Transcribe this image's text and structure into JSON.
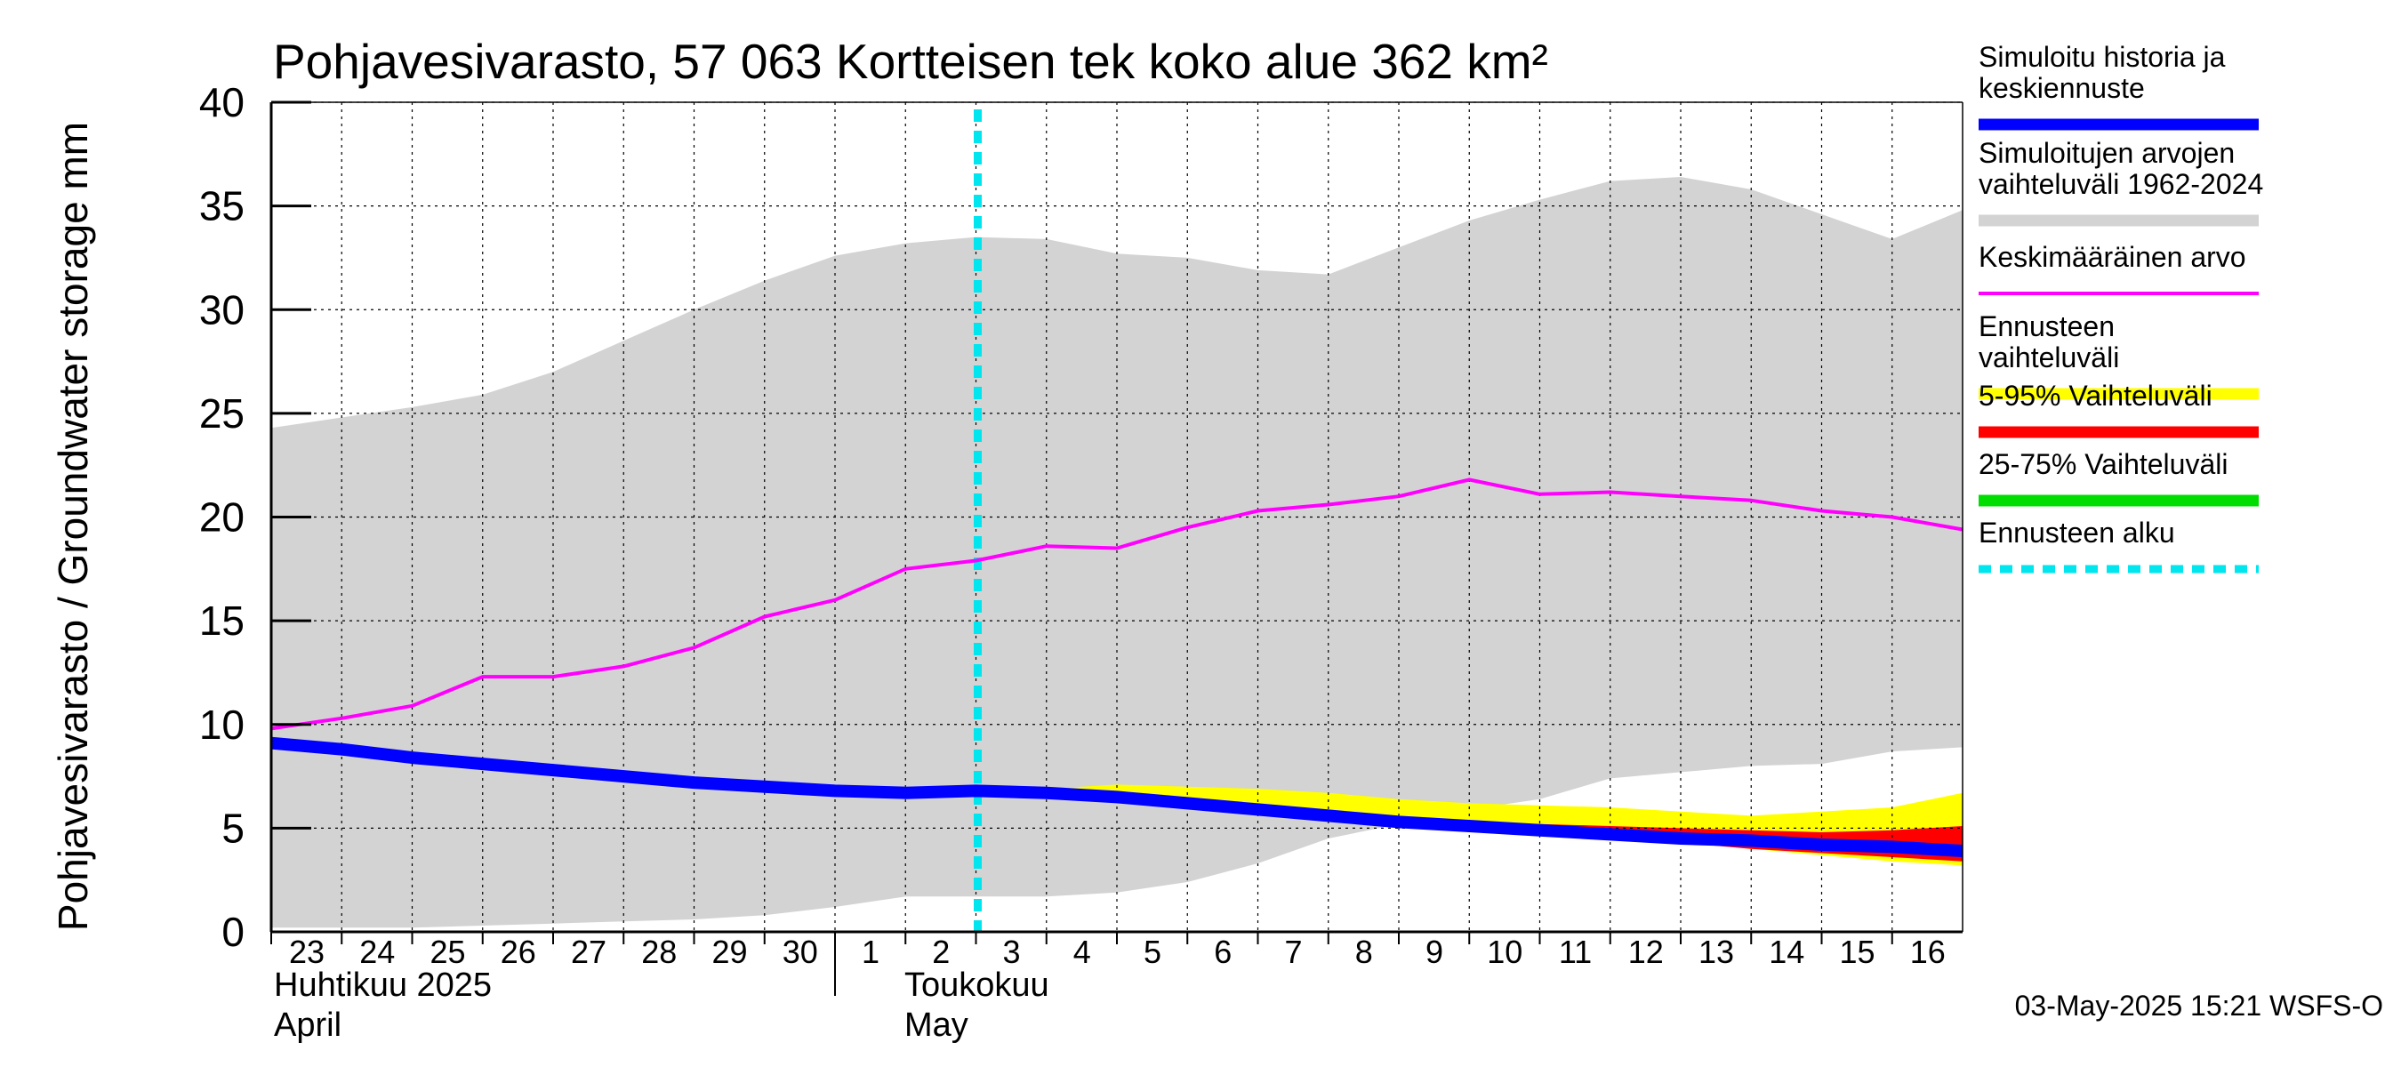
{
  "chart_data": {
    "type": "area",
    "title": "Pohjavesivarasto, 57 063 Kortteisen tek koko alue 362 km²",
    "ylabel": "Pohjavesivarasto / Groundwater storage   mm",
    "ylim": [
      0,
      40
    ],
    "yticks": [
      0,
      5,
      10,
      15,
      20,
      25,
      30,
      35,
      40
    ],
    "grid": true,
    "legend_position": "right",
    "x": [
      "2025-04-23",
      "2025-04-24",
      "2025-04-25",
      "2025-04-26",
      "2025-04-27",
      "2025-04-28",
      "2025-04-29",
      "2025-04-30",
      "2025-05-01",
      "2025-05-02",
      "2025-05-03",
      "2025-05-04",
      "2025-05-05",
      "2025-05-06",
      "2025-05-07",
      "2025-05-08",
      "2025-05-09",
      "2025-05-10",
      "2025-05-11",
      "2025-05-12",
      "2025-05-13",
      "2025-05-14",
      "2025-05-15",
      "2025-05-16",
      "2025-05-17"
    ],
    "x_tick_labels": [
      "23",
      "24",
      "25",
      "26",
      "27",
      "28",
      "29",
      "30",
      "1",
      "2",
      "3",
      "4",
      "5",
      "6",
      "7",
      "8",
      "9",
      "10",
      "11",
      "12",
      "13",
      "14",
      "15",
      "16"
    ],
    "month_labels": [
      {
        "fi": "Huhtikuu  2025",
        "en": "April"
      },
      {
        "fi": "Toukokuu",
        "en": "May"
      }
    ],
    "forecast_start": "2025-05-03",
    "series": [
      {
        "name": "Simuloitujen arvojen vaihteluväli 1962-2024",
        "kind": "band",
        "color": "#d3d3d3",
        "upper": [
          24.3,
          24.8,
          25.3,
          25.9,
          27.0,
          28.5,
          30.0,
          31.4,
          32.6,
          33.2,
          33.5,
          33.4,
          32.7,
          32.5,
          31.9,
          31.7,
          33.0,
          34.3,
          35.3,
          36.2,
          36.4,
          35.8,
          34.6,
          33.4,
          34.8
        ],
        "lower": [
          0.2,
          0.2,
          0.2,
          0.3,
          0.4,
          0.5,
          0.6,
          0.8,
          1.2,
          1.7,
          1.7,
          1.7,
          1.9,
          2.4,
          3.3,
          4.5,
          5.2,
          5.9,
          6.4,
          7.4,
          7.7,
          8.0,
          8.1,
          8.7,
          8.9
        ]
      },
      {
        "name": "Ennusteen vaihteluväli",
        "kind": "band",
        "color": "#ffff00",
        "x_start": "2025-05-03",
        "upper": [
          6.9,
          6.9,
          7.1,
          7.0,
          6.9,
          6.7,
          6.4,
          6.2,
          6.1,
          6.0,
          5.8,
          5.6,
          5.8,
          6.0,
          6.7
        ],
        "lower": [
          6.8,
          6.6,
          6.3,
          6.1,
          5.8,
          5.5,
          5.2,
          5.0,
          4.7,
          4.5,
          4.3,
          4.0,
          3.7,
          3.4,
          3.2
        ]
      },
      {
        "name": "5-95% Vaihteluväli",
        "kind": "band",
        "color": "#ff0000",
        "x_start": "2025-05-03",
        "upper": [
          6.8,
          6.6,
          6.3,
          6.1,
          5.8,
          5.5,
          5.3,
          5.1,
          5.2,
          5.1,
          5.0,
          4.9,
          4.8,
          4.9,
          5.1
        ],
        "lower": [
          6.8,
          6.6,
          6.3,
          6.1,
          5.8,
          5.5,
          5.2,
          5.0,
          4.7,
          4.5,
          4.3,
          4.0,
          3.8,
          3.6,
          3.4
        ]
      },
      {
        "name": "25-75% Vaihteluväli",
        "kind": "band",
        "color": "#00dd00",
        "x_start": "2025-05-03",
        "upper": [
          6.8,
          6.6,
          6.3,
          6.1,
          5.8,
          5.5,
          5.2,
          5.0,
          4.8,
          4.7,
          4.5,
          4.4,
          4.3,
          4.3,
          4.2
        ],
        "lower": [
          6.8,
          6.6,
          6.3,
          6.1,
          5.8,
          5.5,
          5.2,
          5.0,
          4.7,
          4.6,
          4.4,
          4.2,
          4.1,
          3.9,
          3.8
        ]
      },
      {
        "name": "Keskimääräinen arvo",
        "kind": "line",
        "color": "#ff00ff",
        "values": [
          9.8,
          10.3,
          10.9,
          12.3,
          12.3,
          12.8,
          13.7,
          15.2,
          16.0,
          17.5,
          17.9,
          18.6,
          18.5,
          19.5,
          20.3,
          20.6,
          21.0,
          21.8,
          21.1,
          21.2,
          21.0,
          20.8,
          20.3,
          20.0,
          19.4
        ]
      },
      {
        "name": "Simuloitu historia ja keskiennuste",
        "kind": "line",
        "color": "#0000ff",
        "values": [
          9.1,
          8.8,
          8.4,
          8.1,
          7.8,
          7.5,
          7.2,
          7.0,
          6.8,
          6.7,
          6.8,
          6.7,
          6.5,
          6.2,
          5.9,
          5.6,
          5.3,
          5.1,
          4.9,
          4.7,
          4.5,
          4.4,
          4.2,
          4.1,
          3.9
        ]
      }
    ]
  },
  "legend": {
    "items": [
      {
        "label": "Simuloitu historia ja keskiennuste",
        "color": "#0000ff",
        "style": "solid"
      },
      {
        "label": "Simuloitujen arvojen vaihteluväli 1962-2024",
        "color": "#d3d3d3",
        "style": "solid"
      },
      {
        "label": "Keskimääräinen arvo",
        "color": "#ff00ff",
        "style": "thin"
      },
      {
        "label": "Ennusteen vaihteluväli",
        "color": "#ffff00",
        "style": "solid"
      },
      {
        "label": "5-95% Vaihteluväli",
        "color": "#ff0000",
        "style": "solid"
      },
      {
        "label": "25-75% Vaihteluväli",
        "color": "#00dd00",
        "style": "solid"
      },
      {
        "label": "Ennusteen alku",
        "color": "#00e5ee",
        "style": "dashed"
      }
    ]
  },
  "timestamp": "03-May-2025 15:21 WSFS-O"
}
